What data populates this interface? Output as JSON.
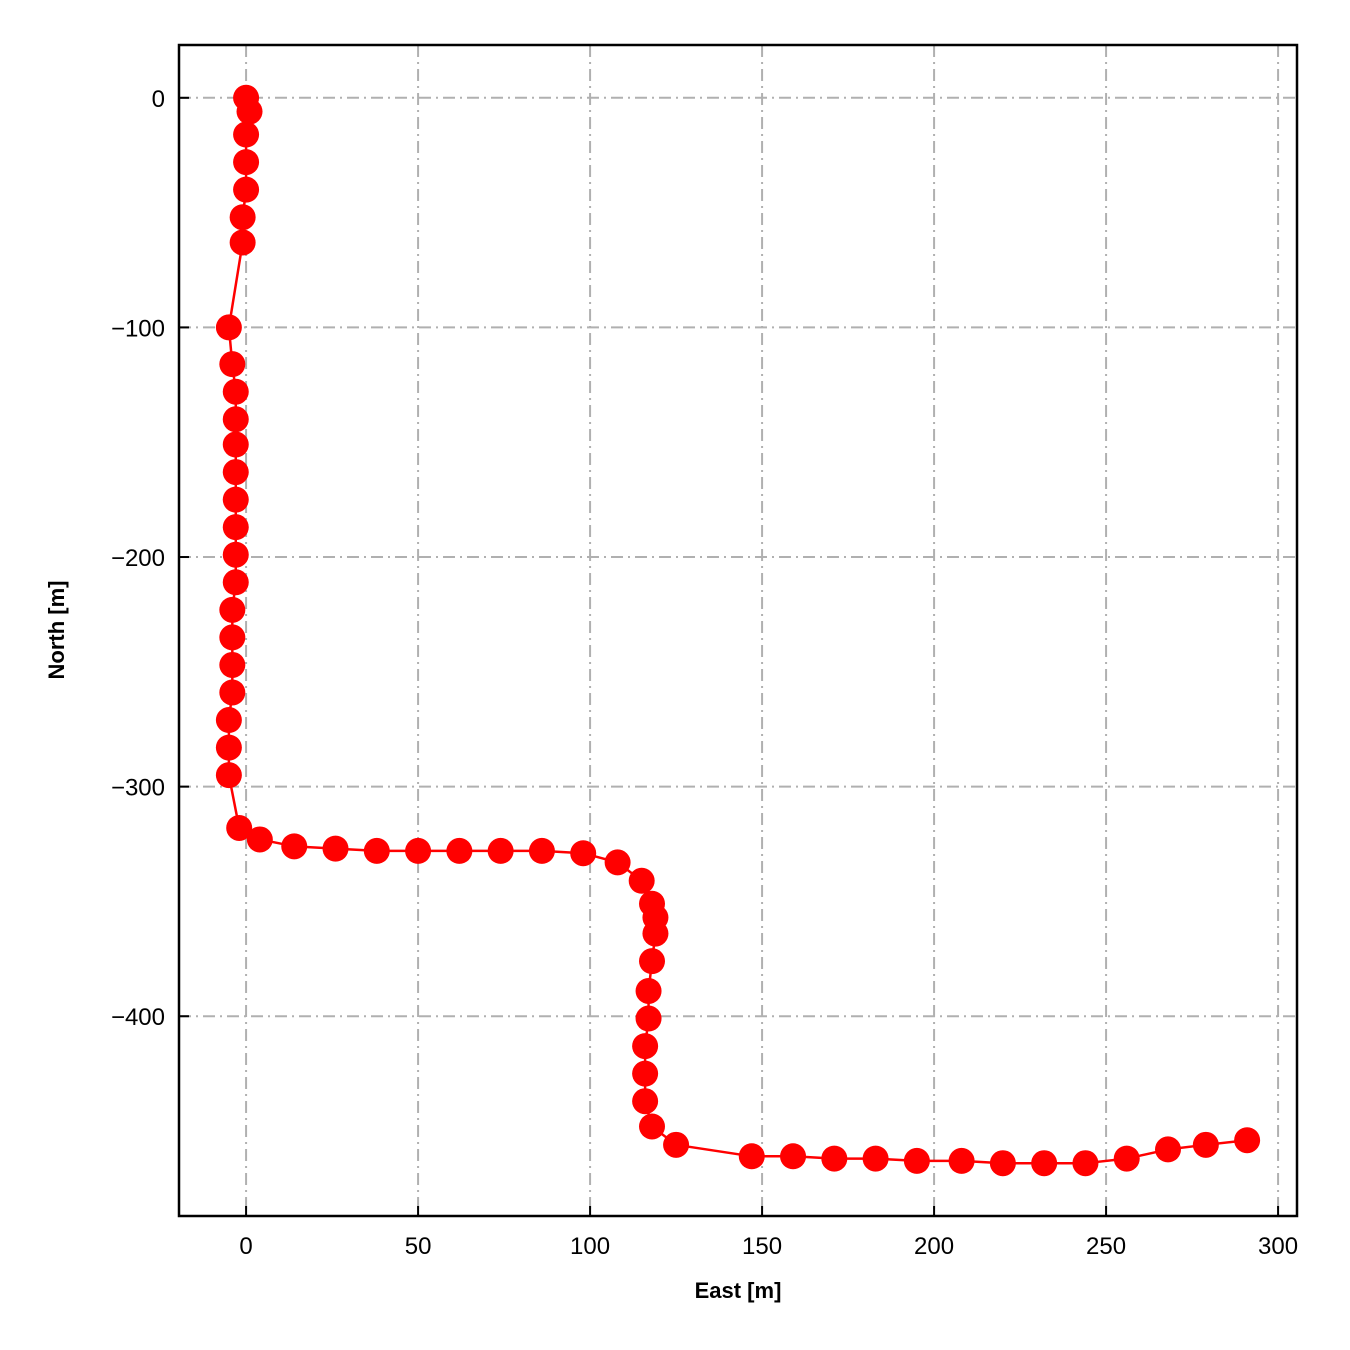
{
  "chart_data": {
    "type": "line",
    "title": "",
    "xlabel": "East [m]",
    "ylabel": "North [m]",
    "xlim": [
      -19.5,
      305.5
    ],
    "ylim": [
      -487,
      23
    ],
    "xticks": [
      0,
      50,
      100,
      150,
      200,
      250,
      300
    ],
    "xtick_labels": [
      "0",
      "50",
      "100",
      "150",
      "200",
      "250",
      "300"
    ],
    "yticks": [
      0,
      -100,
      -200,
      -300,
      -400
    ],
    "ytick_labels": [
      "0",
      "−100",
      "−200",
      "−300",
      "−400"
    ],
    "grid": true,
    "legend": false,
    "series": [
      {
        "color": "#ff0000",
        "marker": "circle",
        "x": [
          0,
          1,
          0,
          0,
          0,
          -1,
          -1,
          -5,
          -4,
          -3,
          -3,
          -3,
          -3,
          -3,
          -3,
          -3,
          -3,
          -4,
          -4,
          -4,
          -4,
          -5,
          -5,
          -5,
          -2,
          4,
          14,
          26,
          38,
          50,
          62,
          74,
          86,
          98,
          108,
          115,
          118,
          119,
          119,
          118,
          117,
          117,
          116,
          116,
          116,
          118,
          125,
          147,
          159,
          171,
          183,
          195,
          208,
          220,
          232,
          244,
          256,
          268,
          279,
          291
        ],
        "y": [
          0,
          -6,
          -16,
          -28,
          -40,
          -52,
          -63,
          -100,
          -116,
          -128,
          -140,
          -151,
          -163,
          -175,
          -187,
          -199,
          -211,
          -223,
          -235,
          -247,
          -259,
          -271,
          -283,
          -295,
          -318,
          -323,
          -326,
          -327,
          -328,
          -328,
          -328,
          -328,
          -328,
          -329,
          -333,
          -341,
          -351,
          -357,
          -364,
          -376,
          -389,
          -401,
          -413,
          -425,
          -437,
          -448,
          -456,
          -461,
          -461,
          -462,
          -462,
          -463,
          -463,
          -464,
          -464,
          -464,
          -462,
          -458,
          -456,
          -454
        ]
      }
    ]
  }
}
